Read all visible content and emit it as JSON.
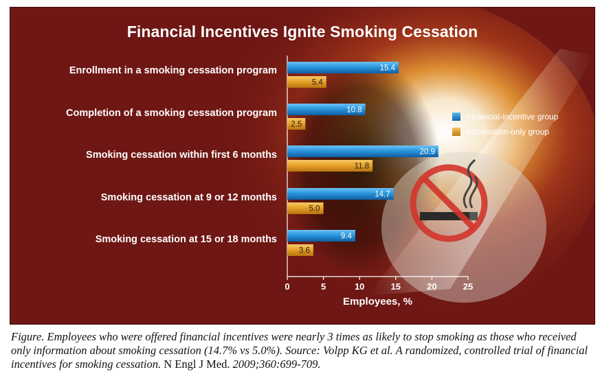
{
  "colors": {
    "panel": "#6e1714",
    "financial": "#1f8ad6",
    "information": "#e8a12a",
    "text": "#ffffff"
  },
  "chart_data": {
    "type": "bar",
    "orientation": "horizontal",
    "title": "Financial Incentives Ignite Smoking Cessation",
    "xlabel": "Employees, %",
    "ylabel": "",
    "xlim": [
      0,
      25
    ],
    "xticks": [
      "0",
      "5",
      "10",
      "15",
      "20",
      "25"
    ],
    "legend_position": "right",
    "categories": [
      "Enrollment in a smoking cessation program",
      "Completion of a smoking cessation program",
      "Smoking cessation within first 6 months",
      "Smoking cessation at 9 or 12 months",
      "Smoking cessation at 15 or 18 months"
    ],
    "series": [
      {
        "name": "Financial-incentive group",
        "values": [
          15.4,
          10.8,
          20.9,
          14.7,
          9.4
        ],
        "labels": [
          "15.4",
          "10.8",
          "20.9",
          "14.7",
          "9.4"
        ]
      },
      {
        "name": "Information-only group",
        "values": [
          5.4,
          2.5,
          11.8,
          5.0,
          3.6
        ],
        "labels": [
          "5.4",
          "2.5",
          "11.8",
          "5.0",
          "3.6"
        ]
      }
    ]
  },
  "caption": {
    "part1": "Figure. Employees who were offered financial incentives were nearly 3 times as likely to stop smoking as those who received only information about smoking cessation (14.7% vs 5.0%). Source: Volpp KG et al. A randomized, controlled trial of financial incentives for smoking cessation.",
    "journal": " N Engl J Med.",
    "part2": " 2009;360:699-709."
  },
  "icons": {
    "no_smoking": "no-smoking-icon"
  }
}
